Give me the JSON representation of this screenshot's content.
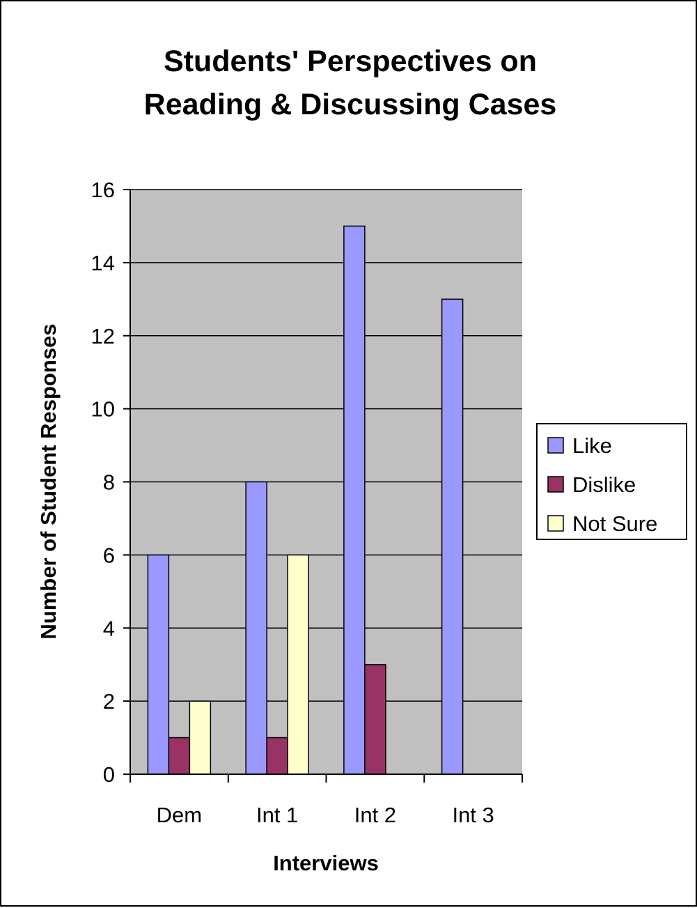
{
  "chart_data": {
    "type": "bar",
    "title_lines": [
      "Students' Perspectives on",
      "Reading & Discussing Cases"
    ],
    "xlabel": "Interviews",
    "ylabel": "Number of Student Responses",
    "categories": [
      "Dem",
      "Int 1",
      "Int 2",
      "Int 3"
    ],
    "series": [
      {
        "name": "Like",
        "values": [
          6,
          8,
          15,
          13
        ],
        "color": "#9999ff"
      },
      {
        "name": "Dislike",
        "values": [
          1,
          1,
          3,
          0
        ],
        "color": "#993366"
      },
      {
        "name": "Not Sure",
        "values": [
          2,
          6,
          0,
          0
        ],
        "color": "#ffffcc"
      }
    ],
    "ylim": [
      0,
      16
    ],
    "yticks": [
      0,
      2,
      4,
      6,
      8,
      10,
      12,
      14,
      16
    ],
    "grid": true,
    "legend_position": "right",
    "plot_background": "#c0c0c0"
  }
}
